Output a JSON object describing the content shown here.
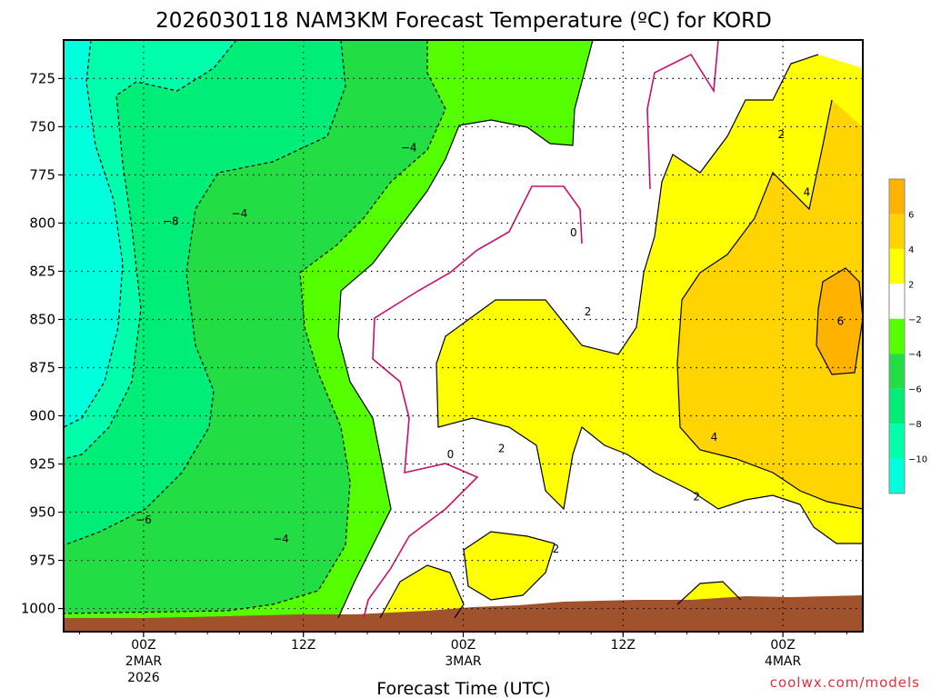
{
  "chart_data": {
    "type": "heatmap",
    "title": "2026030118 NAM3KM Forecast Temperature (ºC) for KORD",
    "xlabel": "Forecast Time (UTC)",
    "ylabel": "",
    "y_axis": {
      "quantity": "pressure (hPa)",
      "ticks": [
        "725",
        "750",
        "775",
        "800",
        "825",
        "850",
        "875",
        "900",
        "925",
        "950",
        "975",
        "1000"
      ],
      "range": [
        1012,
        705
      ],
      "inverted": true
    },
    "x_axis": {
      "quantity": "forecast hour",
      "range": [
        -5,
        45
      ],
      "ticks": [
        {
          "hour": 0,
          "lines": [
            "00Z",
            "2MAR",
            "2026"
          ]
        },
        {
          "hour": 10,
          "lines": [
            "12Z"
          ]
        },
        {
          "hour": 20,
          "lines": [
            "00Z",
            "3MAR"
          ]
        },
        {
          "hour": 30,
          "lines": [
            "12Z"
          ]
        },
        {
          "hour": 40,
          "lines": [
            "00Z",
            "4MAR"
          ]
        }
      ]
    },
    "grid": "dotted",
    "legend": {
      "position": "right",
      "labels": [
        "6",
        "4",
        "2",
        "−2",
        "−4",
        "−6",
        "−8",
        "−10"
      ],
      "levels": [
        8,
        6,
        4,
        2,
        -2,
        -4,
        -6,
        -8,
        -10,
        -12
      ],
      "colors": [
        "#ffb300",
        "#ffd400",
        "#ffff00",
        "#ffffff",
        "#55ff00",
        "#22dd44",
        "#00ee77",
        "#00ffaa",
        "#00ffdd"
      ]
    },
    "contour_labels": [
      {
        "text": "−8",
        "hour": 1.7,
        "pressure": 799
      },
      {
        "text": "−4",
        "hour": 6.0,
        "pressure": 795
      },
      {
        "text": "−4",
        "hour": 16.6,
        "pressure": 761
      },
      {
        "text": "−6",
        "hour": 0.0,
        "pressure": 954
      },
      {
        "text": "−4",
        "hour": 8.6,
        "pressure": 964
      },
      {
        "text": "0",
        "hour": 26.9,
        "pressure": 805
      },
      {
        "text": "2",
        "hour": 27.8,
        "pressure": 846
      },
      {
        "text": "0",
        "hour": 19.2,
        "pressure": 920
      },
      {
        "text": "2",
        "hour": 22.4,
        "pressure": 917
      },
      {
        "text": "2",
        "hour": 25.8,
        "pressure": 969
      },
      {
        "text": "4",
        "hour": 35.7,
        "pressure": 911
      },
      {
        "text": "2",
        "hour": 34.6,
        "pressure": 942
      },
      {
        "text": "2",
        "hour": 39.9,
        "pressure": 754
      },
      {
        "text": "4",
        "hour": 41.5,
        "pressure": 784
      },
      {
        "text": "6",
        "hour": 43.6,
        "pressure": 851
      }
    ],
    "field_regions": [
      {
        "temperature_band": "≤ −8",
        "description": "cold pocket aloft and early"
      },
      {
        "temperature_band": "−8 to −4",
        "description": "midlevel cold air early"
      },
      {
        "temperature_band": "−4 to −2",
        "description": "green zone ahead of warm advection"
      },
      {
        "temperature_band": "−2 to 2",
        "description": "near-freezing transition zone"
      },
      {
        "temperature_band": "2 to 4",
        "description": "warm layer developing 3MAR"
      },
      {
        "temperature_band": "4 to 6",
        "description": "warm air 3MAR night–4MAR"
      },
      {
        "temperature_band": "≥ 6",
        "description": "warm core near 850 hPa on 4MAR"
      }
    ],
    "terrain": {
      "color": "#a0522d",
      "description": "ground surface below lowest level"
    }
  },
  "credit": "coolwx.com/models"
}
